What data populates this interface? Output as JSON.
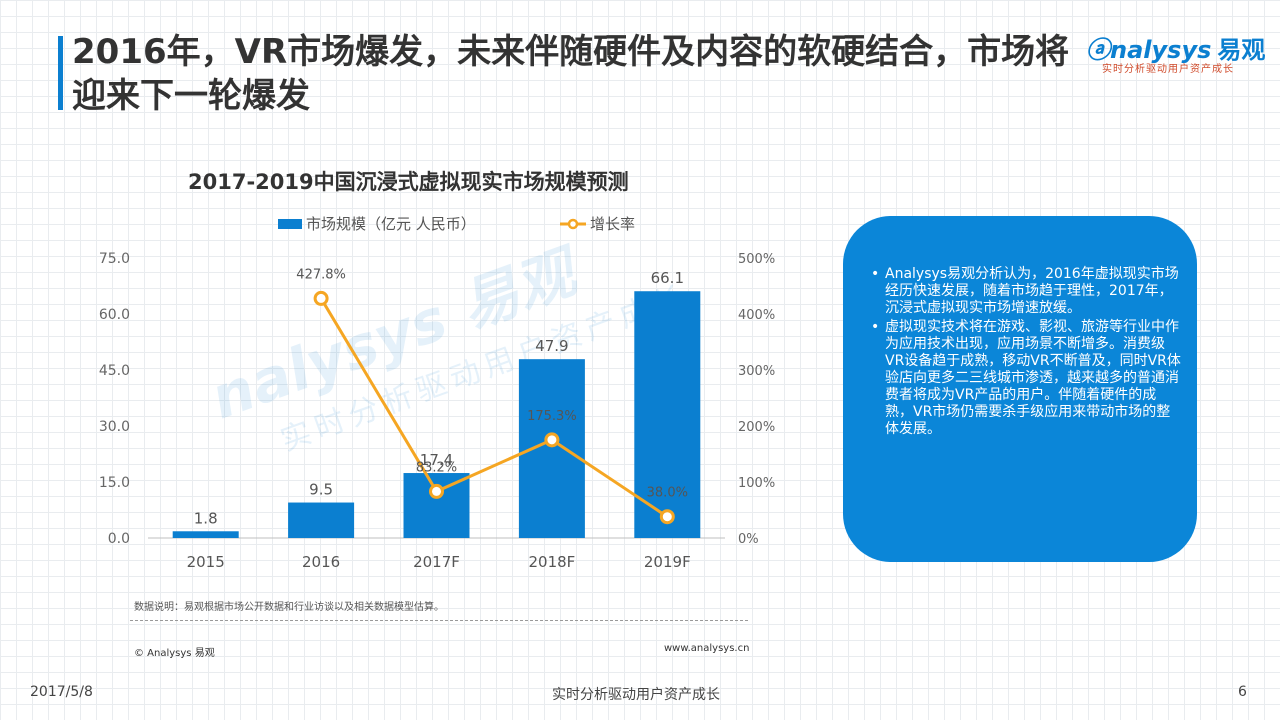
{
  "header": {
    "title": "2016年，VR市场爆发，未来伴随硬件及内容的软硬结合，市场将迎来下一轮爆发",
    "logo_main": "nalysys",
    "logo_cn": "易观",
    "logo_sub": "实时分析驱动用户资产成长"
  },
  "chart_data": {
    "type": "bar",
    "title": "2017-2019中国沉浸式虚拟现实市场规模预测",
    "categories": [
      "2015",
      "2016",
      "2017F",
      "2018F",
      "2019F"
    ],
    "series": [
      {
        "name": "市场规模（亿元 人民币）",
        "type": "bar",
        "axis": "left",
        "values": [
          1.8,
          9.5,
          17.4,
          47.9,
          66.1
        ],
        "labels": [
          "1.8",
          "9.5",
          "17.4",
          "47.9",
          "66.1"
        ]
      },
      {
        "name": "增长率",
        "type": "line",
        "axis": "right",
        "values": [
          null,
          427.8,
          83.2,
          175.3,
          38.0
        ],
        "labels": [
          "",
          "427.8%",
          "83.2%",
          "175.3%",
          "38.0%"
        ]
      }
    ],
    "left_axis": {
      "ylim": [
        0,
        75
      ],
      "ticks": [
        "0.0",
        "15.0",
        "30.0",
        "45.0",
        "60.0",
        "75.0"
      ]
    },
    "right_axis": {
      "ylim": [
        0,
        500
      ],
      "ticks": [
        "0%",
        "100%",
        "200%",
        "300%",
        "400%",
        "500%"
      ]
    },
    "legend_position": "top",
    "colors": {
      "bar": "#0b7fd0",
      "line": "#f5a623"
    }
  },
  "watermark": {
    "main": "nalysys 易观",
    "sub": "实时分析驱动用户资产成长"
  },
  "source": {
    "note": "数据说明：易观根据市场公开数据和行业访谈以及相关数据模型估算。",
    "copyright": "© Analysys 易观",
    "url": "www.analysys.cn"
  },
  "callout": {
    "bullets": [
      "Analysys易观分析认为，2016年虚拟现实市场经历快速发展，随着市场趋于理性，2017年，沉浸式虚拟现实市场增速放缓。",
      "虚拟现实技术将在游戏、影视、旅游等行业中作为应用技术出现，应用场景不断增多。消费级VR设备趋于成熟，移动VR不断普及，同时VR体验店向更多二三线城市渗透，越来越多的普通消费者将成为VR产品的用户。伴随着硬件的成熟，VR市场仍需要杀手级应用来带动市场的整体发展。"
    ]
  },
  "footer": {
    "date": "2017/5/8",
    "center": "实时分析驱动用户资产成长",
    "page": "6"
  }
}
